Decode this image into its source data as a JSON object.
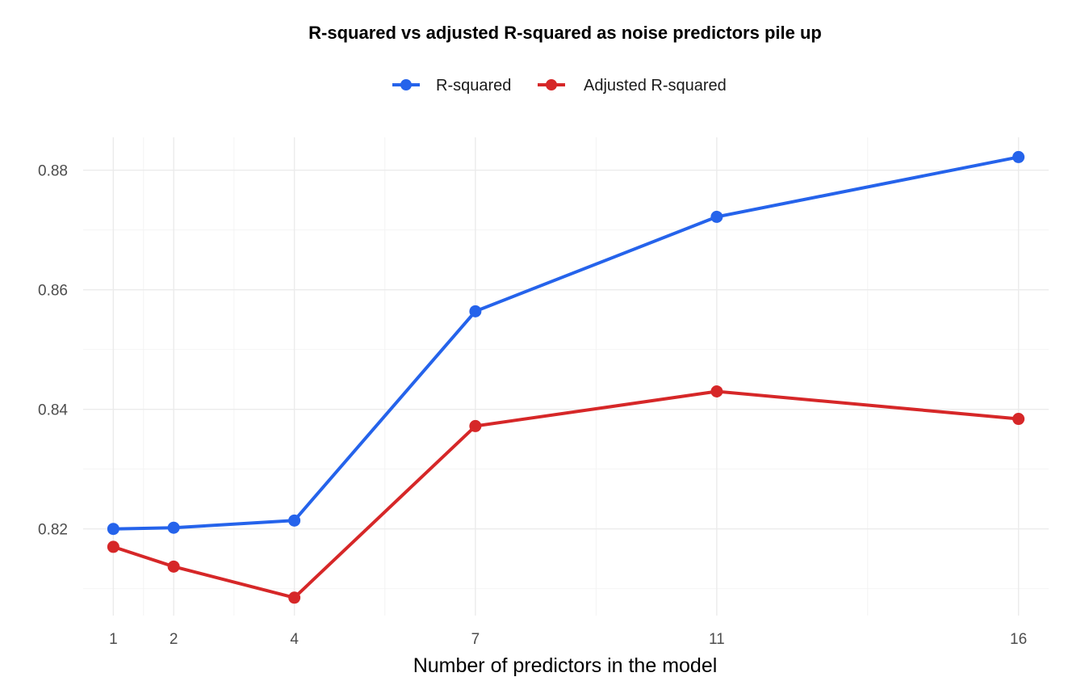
{
  "chart_data": {
    "type": "line",
    "title": "R-squared vs adjusted R-squared as noise predictors pile up",
    "xlabel": "Number of predictors in the model",
    "ylabel": "",
    "x": [
      1,
      2,
      4,
      7,
      11,
      16
    ],
    "x_ticks": [
      "1",
      "2",
      "4",
      "7",
      "11",
      "16"
    ],
    "y_ticks": [
      "0.82",
      "0.84",
      "0.86",
      "0.88"
    ],
    "xlim": [
      0.5,
      16.5
    ],
    "ylim": [
      0.8055,
      0.8855
    ],
    "grid": true,
    "legend_position": "top",
    "series": [
      {
        "name": "R-squared",
        "color": "#2563eb",
        "values": [
          0.82,
          0.8202,
          0.8214,
          0.8564,
          0.8722,
          0.8822
        ]
      },
      {
        "name": "Adjusted R-squared",
        "color": "#d62728",
        "values": [
          0.817,
          0.8137,
          0.8085,
          0.8372,
          0.843,
          0.8384
        ]
      }
    ]
  }
}
